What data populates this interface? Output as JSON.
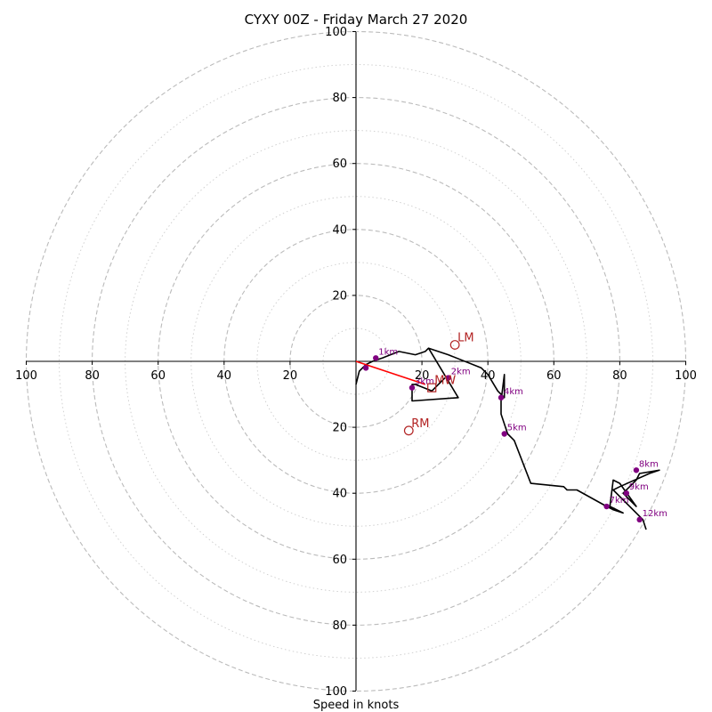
{
  "chart_data": {
    "type": "scatter",
    "title": "CYXY 00Z - Friday March 27 2020",
    "xlabel": "Speed in knots",
    "ylabel": "",
    "xlim": [
      -100,
      100
    ],
    "ylim": [
      -100,
      100
    ],
    "rings": {
      "dashed": [
        20,
        40,
        60,
        80,
        100
      ],
      "dotted": [
        10,
        30,
        50,
        70,
        90
      ]
    },
    "ticks": {
      "x": [
        "100",
        "80",
        "60",
        "40",
        "20",
        "20",
        "40",
        "60",
        "80",
        "100"
      ],
      "x_values": [
        -100,
        -80,
        -60,
        -40,
        -20,
        20,
        40,
        60,
        80,
        100
      ],
      "y": [
        "100",
        "80",
        "60",
        "40",
        "20",
        "20",
        "40",
        "60",
        "80",
        "100"
      ],
      "y_values": [
        100,
        80,
        60,
        40,
        20,
        -20,
        -40,
        -60,
        -80,
        -100
      ]
    },
    "hodograph": [
      [
        0,
        -7
      ],
      [
        1,
        -3
      ],
      [
        3,
        -1
      ],
      [
        5,
        0
      ],
      [
        8,
        1
      ],
      [
        13,
        3
      ],
      [
        18,
        2
      ],
      [
        21,
        3
      ],
      [
        22,
        4
      ],
      [
        28,
        2
      ],
      [
        38,
        -2
      ],
      [
        40,
        -4
      ],
      [
        43,
        -9
      ],
      [
        44,
        -10
      ],
      [
        45,
        -11
      ],
      [
        45,
        -4
      ],
      [
        44,
        -12
      ],
      [
        44,
        -16
      ],
      [
        46,
        -22
      ],
      [
        48,
        -24
      ],
      [
        53,
        -37
      ],
      [
        63,
        -38
      ],
      [
        64,
        -39
      ],
      [
        67,
        -39
      ],
      [
        76,
        -44
      ],
      [
        78,
        -45
      ],
      [
        81,
        -46
      ],
      [
        77,
        -44
      ],
      [
        78,
        -36
      ],
      [
        80,
        -37
      ],
      [
        85,
        -44
      ],
      [
        81,
        -40
      ],
      [
        85,
        -36
      ],
      [
        86,
        -34
      ],
      [
        92,
        -33
      ],
      [
        89,
        -34
      ],
      [
        80,
        -38
      ],
      [
        78,
        -39
      ],
      [
        87,
        -48
      ],
      [
        88,
        -51
      ]
    ],
    "partial_segment": [
      [
        22,
        4
      ],
      [
        31,
        -11
      ],
      [
        17,
        -12
      ],
      [
        17,
        -7
      ],
      [
        18,
        -7
      ],
      [
        23,
        -9
      ],
      [
        27,
        -5
      ]
    ],
    "shear_segment": [
      [
        0,
        0
      ],
      [
        21,
        -7
      ]
    ],
    "height_labels": [
      {
        "label": "",
        "x": 3,
        "y": -2
      },
      {
        "label": "1km",
        "x": 6,
        "y": 1
      },
      {
        "label": "2km",
        "x": 28,
        "y": -5
      },
      {
        "label": "3km",
        "x": 17,
        "y": -8
      },
      {
        "label": "4km",
        "x": 44,
        "y": -11
      },
      {
        "label": "5km",
        "x": 45,
        "y": -22
      },
      {
        "label": "7km",
        "x": 76,
        "y": -44
      },
      {
        "label": "8km",
        "x": 85,
        "y": -33
      },
      {
        "label": "9km",
        "x": 82,
        "y": -40
      },
      {
        "label": "12km",
        "x": 86,
        "y": -48
      }
    ],
    "motion_markers": [
      {
        "label": "LM",
        "x": 30,
        "y": 5,
        "shape": "circle"
      },
      {
        "label": "RM",
        "x": 16,
        "y": -21,
        "shape": "circle"
      },
      {
        "label": "MW",
        "x": 23,
        "y": -8,
        "shape": "square"
      }
    ],
    "colors": {
      "hodograph": "#000000",
      "height_points": "#800080",
      "motion": "#b22222",
      "shear": "#ff0000",
      "grid": "#bbbbbb",
      "axes": "#000000"
    }
  }
}
